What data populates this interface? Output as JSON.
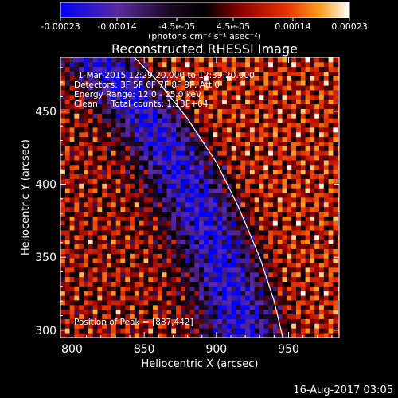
{
  "chart_data": {
    "type": "heatmap",
    "title": "Reconstructed RHESSI Image",
    "xlabel": "Heliocentric X (arcsec)",
    "ylabel": "Heliocentric Y (arcsec)",
    "xlim": [
      792,
      985
    ],
    "ylim": [
      295,
      487
    ],
    "xticks": [
      800,
      850,
      900,
      950
    ],
    "yticks": [
      300,
      350,
      400,
      450
    ],
    "colorbar": {
      "range": [
        -0.00023,
        0.00023
      ],
      "ticks": [
        {
          "value": -0.00023,
          "label": "-0.00023"
        },
        {
          "value": -0.00014,
          "label": "-0.00014"
        },
        {
          "value": -4.5e-05,
          "label": "-4.5e-05"
        },
        {
          "value": 4.5e-05,
          "label": "4.5e-05"
        },
        {
          "value": 0.00014,
          "label": "0.00014"
        },
        {
          "value": 0.00023,
          "label": "0.00023"
        }
      ],
      "units": "(photons cm⁻² s⁻¹ asec⁻²)",
      "colors": [
        "#0000ff",
        "#6a2aa8",
        "#2a0a30",
        "#000000",
        "#8a0000",
        "#e02000",
        "#ff8c00",
        "#ffffff"
      ]
    },
    "annotations": [
      "1-Mar-2015 12:29:20.000 to 12:39:20.000",
      "Detectors: 3F 5F 6F 7F 8F 9F, Att 0",
      "Energy Range: 12.0 - 25.0 keV",
      "Clean     Total counts: 1.13E+04"
    ],
    "peak_label": "Position of Peak = [887,442]",
    "limb": [
      [
        843,
        487
      ],
      [
        860,
        470
      ],
      [
        880,
        445
      ],
      [
        900,
        415
      ],
      [
        915,
        385
      ],
      [
        930,
        350
      ],
      [
        940,
        320
      ],
      [
        946,
        295
      ]
    ]
  },
  "footer_date": "16-Aug-2017 03:05"
}
